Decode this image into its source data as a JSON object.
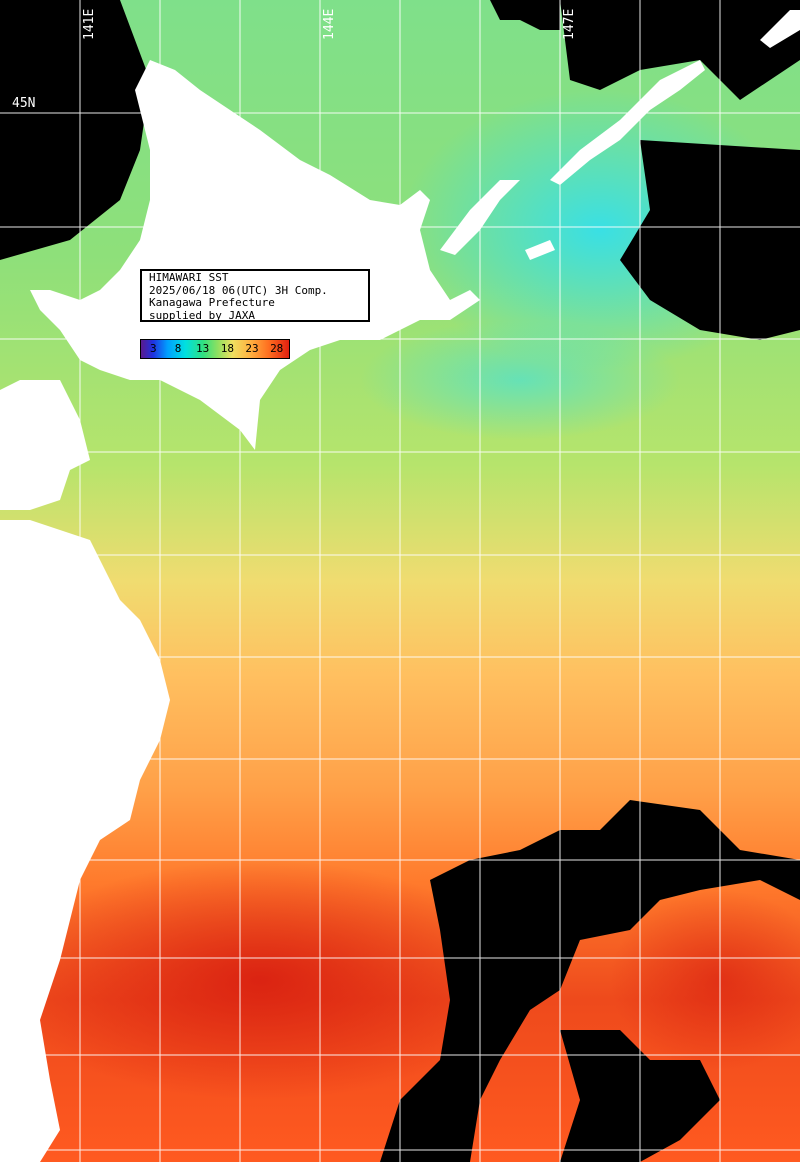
{
  "info": {
    "title": "HIMAWARI SST",
    "datetime": "2025/06/18 06(UTC) 3H Comp.",
    "organization": "Kanagawa Prefecture",
    "credit": "supplied by JAXA"
  },
  "colorbar": {
    "ticks": [
      "3",
      "8",
      "13",
      "18",
      "23",
      "28"
    ]
  },
  "grid_labels": {
    "lon": [
      "141E",
      "144E",
      "147E"
    ],
    "lat": [
      "45N"
    ]
  },
  "colors": {
    "land": "#ffffff",
    "no_data": "#000000",
    "grid": "#ffffff"
  }
}
